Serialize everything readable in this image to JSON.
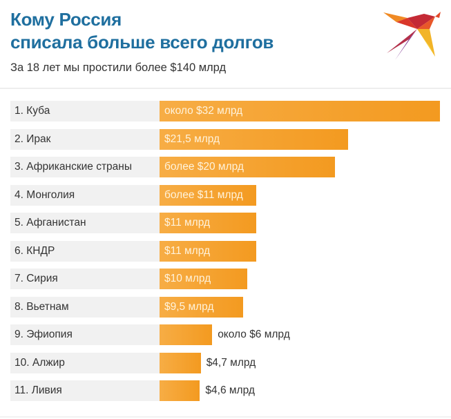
{
  "header": {
    "title_line1": "Кому Россия",
    "title_line2": "списала больше всего долгов",
    "subtitle": "За 18 лет мы простили более $140 млрд"
  },
  "colors": {
    "title": "#1f6f9f",
    "bar": "#f5a330",
    "label_bg": "#f1f1f1"
  },
  "logo": {
    "icon": "bird-icon"
  },
  "chart_data": {
    "type": "bar",
    "orientation": "horizontal",
    "categories": [
      "1. Куба",
      "2. Ирак",
      "3. Африканские страны",
      "4. Монголия",
      "5. Афганистан",
      "6. КНДР",
      "7. Сирия",
      "8. Вьетнам",
      "9. Эфиопия",
      "10. Алжир",
      "11. Ливия"
    ],
    "values": [
      32,
      21.5,
      20,
      11,
      11,
      11,
      10,
      9.5,
      6,
      4.7,
      4.6
    ],
    "data_labels": [
      "около $32 млрд",
      "$21,5 млрд",
      "более $20 млрд",
      "более $11 млрд",
      "$11 млрд",
      "$11 млрд",
      "$10 млрд",
      "$9,5 млрд",
      "около $6 млрд",
      "$4,7 млрд",
      "$4,6 млрд"
    ],
    "unit": "млрд $",
    "grid": false
  }
}
